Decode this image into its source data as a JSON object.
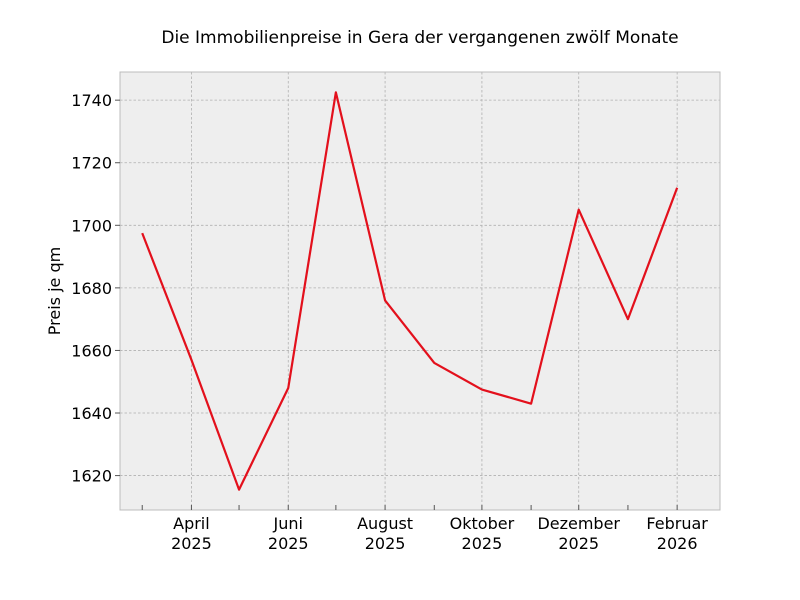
{
  "chart_data": {
    "type": "line",
    "title": "Die Immobilienpreise in Gera der vergangenen zwölf Monate",
    "xlabel": "",
    "ylabel": "Preis je qm",
    "x": [
      "2025-03",
      "2025-04",
      "2025-05",
      "2025-06",
      "2025-07",
      "2025-08",
      "2025-09",
      "2025-10",
      "2025-11",
      "2025-12",
      "2026-01",
      "2026-02"
    ],
    "ylim": [
      1609,
      1749
    ],
    "xlim": [
      "2025-02-15",
      "2026-02-28"
    ],
    "yticks": [
      1620,
      1640,
      1660,
      1680,
      1700,
      1720,
      1740
    ],
    "xticks": [
      {
        "x": "2025-03",
        "label": ""
      },
      {
        "x": "2025-04",
        "label": "April\n2025"
      },
      {
        "x": "2025-05",
        "label": ""
      },
      {
        "x": "2025-06",
        "label": "Juni\n2025"
      },
      {
        "x": "2025-07",
        "label": ""
      },
      {
        "x": "2025-08",
        "label": "August\n2025"
      },
      {
        "x": "2025-09",
        "label": ""
      },
      {
        "x": "2025-10",
        "label": "Oktober\n2025"
      },
      {
        "x": "2025-11",
        "label": ""
      },
      {
        "x": "2025-12",
        "label": "Dezember\n2025"
      },
      {
        "x": "2026-01",
        "label": ""
      },
      {
        "x": "2026-02",
        "label": "Februar\n2026"
      }
    ],
    "grid": true,
    "series": [
      {
        "name": "",
        "color": "#e3101c",
        "values": [
          1697.5,
          1657,
          1615.5,
          1648,
          1742.5,
          1676,
          1656,
          1647.5,
          1643,
          1705,
          1670,
          1712
        ]
      }
    ]
  }
}
